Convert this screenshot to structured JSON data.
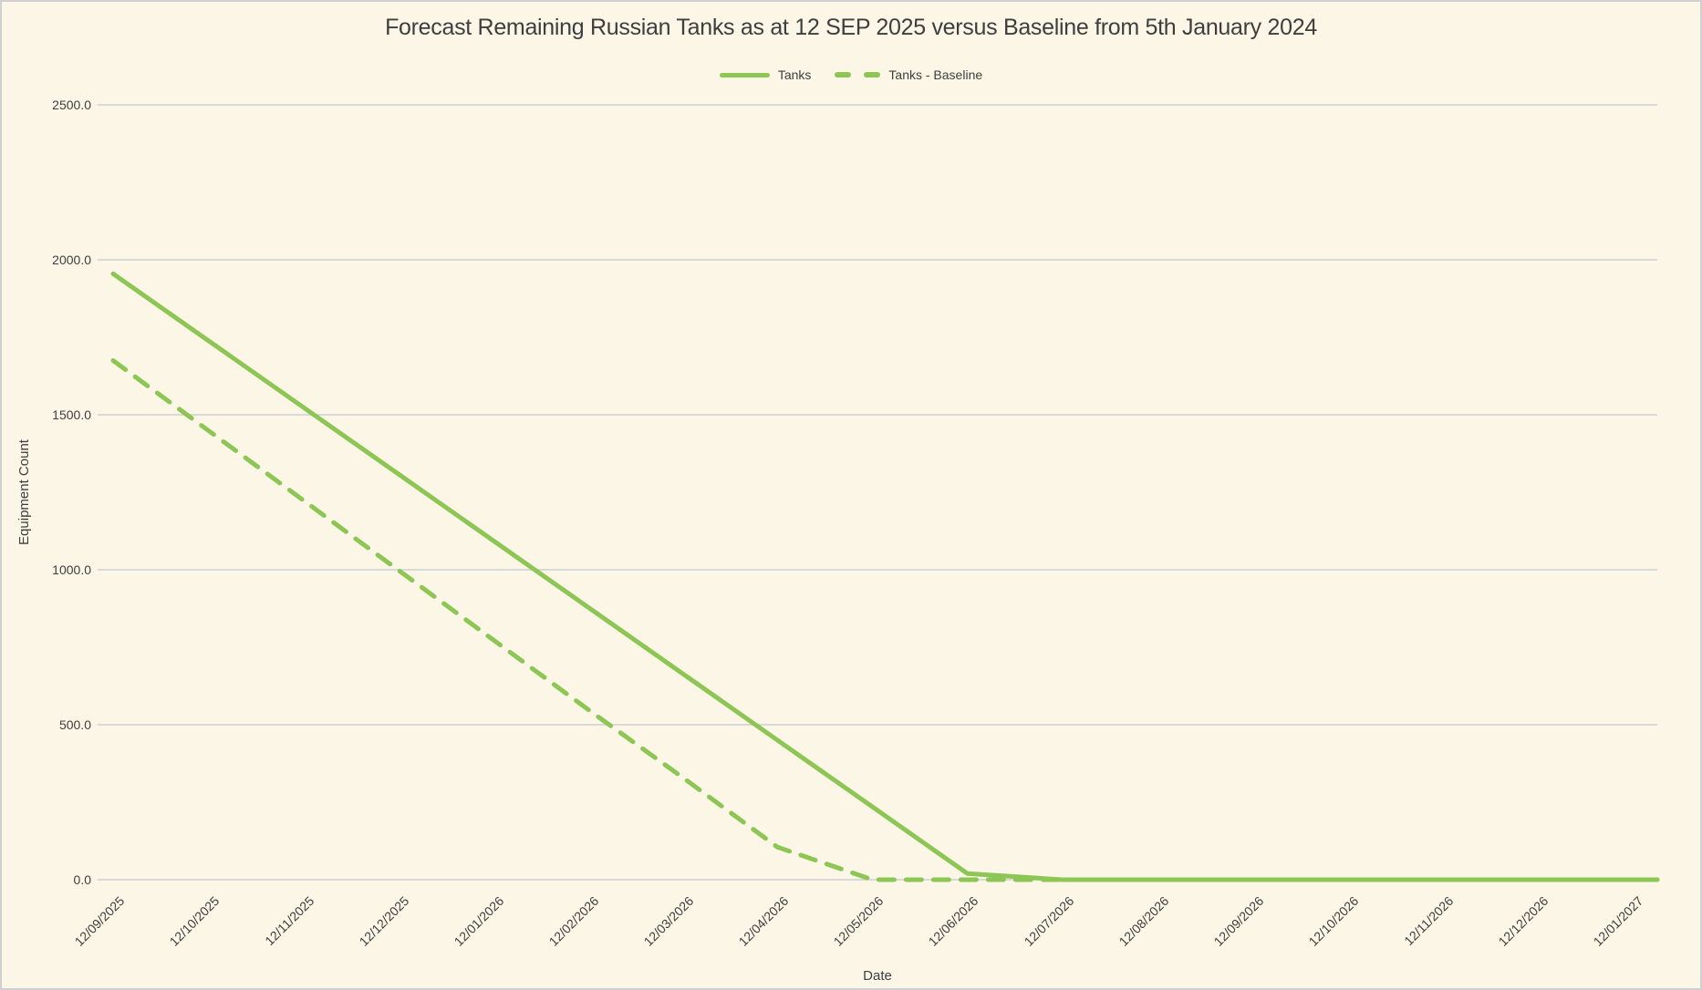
{
  "colors": {
    "background": "#FCF6E7",
    "grid": "#D9D9D9",
    "text": "#3E3E3E",
    "series_green": "#8DC655",
    "border": "#D0D0D2"
  },
  "legend": {
    "items": [
      {
        "label": "Tanks",
        "swatch": "solid-line"
      },
      {
        "label": "Tanks - Baseline",
        "swatch": "dashed-line"
      }
    ]
  },
  "chart_data": {
    "type": "line",
    "title": "Forecast Remaining Russian Tanks as at 12 SEP 2025 versus Baseline from 5th January 2024",
    "xlabel": "Date",
    "ylabel": "Equipment Count",
    "x_tick_labels": [
      "12/09/2025",
      "12/10/2025",
      "12/11/2025",
      "12/12/2025",
      "12/01/2026",
      "12/02/2026",
      "12/03/2026",
      "12/04/2026",
      "12/05/2026",
      "12/06/2026",
      "12/07/2026",
      "12/08/2026",
      "12/09/2026",
      "12/10/2026",
      "12/11/2026",
      "12/12/2026",
      "12/01/2027"
    ],
    "ylim": [
      0,
      2500
    ],
    "ytick_values": [
      0,
      500,
      1000,
      1500,
      2000,
      2500
    ],
    "ytick_labels": [
      "0.0",
      "500.0",
      "1000.0",
      "1500.0",
      "2000.0",
      "2500.0"
    ],
    "grid": "horizontal-only",
    "legend_position": "top-center",
    "series": [
      {
        "name": "Tanks",
        "line_style": "solid",
        "color": "#8DC655",
        "values": [
          1955,
          1740,
          1525,
          1310,
          1095,
          880,
          665,
          450,
          235,
          20,
          0,
          0,
          0,
          0,
          0,
          0,
          0
        ]
      },
      {
        "name": "Tanks - Baseline",
        "line_style": "dashed",
        "color": "#8DC655",
        "values": [
          1675,
          1450,
          1225,
          1000,
          775,
          550,
          330,
          105,
          0,
          0,
          0,
          0,
          0,
          0,
          0,
          0,
          0
        ]
      }
    ]
  }
}
